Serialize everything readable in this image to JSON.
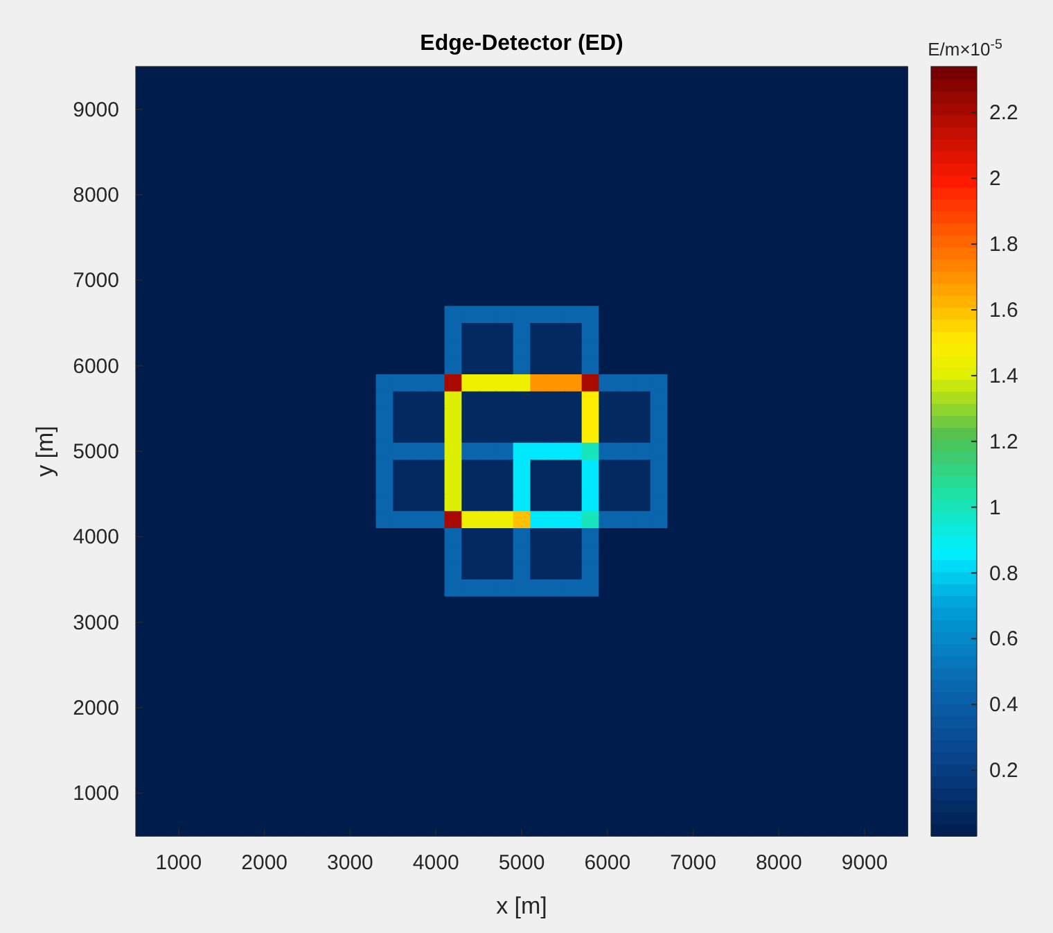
{
  "chart_data": {
    "type": "heatmap",
    "title": "Edge-Detector (ED)",
    "xlabel": "x [m]",
    "ylabel": "y [m]",
    "clabel": "E/m×10$^{-5}$",
    "xlim": [
      500,
      9500
    ],
    "ylim": [
      500,
      9500
    ],
    "xticks": [
      1000,
      2000,
      3000,
      4000,
      5000,
      6000,
      7000,
      8000,
      9000
    ],
    "yticks": [
      1000,
      2000,
      3000,
      4000,
      5000,
      6000,
      7000,
      8000,
      9000
    ],
    "clim": [
      0,
      2.34
    ],
    "cticks": [
      0.2,
      0.4,
      0.6,
      0.8,
      1,
      1.2,
      1.4,
      1.6,
      1.8,
      2,
      2.2
    ],
    "cells": [
      [
        0,
        0,
        0,
        0,
        0,
        0,
        0,
        0,
        0,
        0,
        0,
        0,
        0,
        0,
        0,
        0,
        0,
        0,
        0,
        0,
        0,
        0,
        0,
        0,
        0,
        0,
        0,
        0,
        0,
        0,
        0,
        0,
        0,
        0,
        0,
        0,
        0,
        0,
        0,
        0,
        0,
        0,
        0,
        0,
        0
      ],
      [
        0,
        0,
        0,
        0,
        0,
        0,
        0,
        0,
        0,
        0,
        0,
        0,
        0,
        0,
        0,
        0,
        0,
        0,
        0,
        0,
        0,
        0,
        0,
        0,
        0,
        0,
        0,
        0,
        0,
        0,
        0,
        0,
        0,
        0,
        0,
        0,
        0,
        0,
        0,
        0,
        0,
        0,
        0,
        0,
        0
      ],
      [
        0,
        0,
        0,
        0,
        0,
        0,
        0,
        0,
        0,
        0,
        0,
        0,
        0,
        0,
        0,
        0,
        0,
        0,
        0,
        0,
        0,
        0,
        0,
        0,
        0,
        0,
        0,
        0,
        0,
        0,
        0,
        0,
        0,
        0,
        0,
        0,
        0,
        0,
        0,
        0,
        0,
        0,
        0,
        0,
        0
      ],
      [
        0,
        0,
        0,
        0,
        0,
        0,
        0,
        0,
        0,
        0,
        0,
        0,
        0,
        0,
        0,
        0,
        0,
        0,
        0,
        0,
        0,
        0,
        0,
        0,
        0,
        0,
        0,
        0,
        0,
        0,
        0,
        0,
        0,
        0,
        0,
        0,
        0,
        0,
        0,
        0,
        0,
        0,
        0,
        0,
        0
      ],
      [
        0,
        0,
        0,
        0,
        0,
        0,
        0,
        0,
        0,
        0,
        0,
        0,
        0,
        0,
        0,
        0,
        0,
        0,
        0,
        0,
        0,
        0,
        0,
        0,
        0,
        0,
        0,
        0,
        0,
        0,
        0,
        0,
        0,
        0,
        0,
        0,
        0,
        0,
        0,
        0,
        0,
        0,
        0,
        0,
        0
      ],
      [
        0,
        0,
        0,
        0,
        0,
        0,
        0,
        0,
        0,
        0,
        0,
        0,
        0,
        0,
        0,
        0,
        0,
        0,
        0,
        0,
        0,
        0,
        0,
        0,
        0,
        0,
        0,
        0,
        0,
        0,
        0,
        0,
        0,
        0,
        0,
        0,
        0,
        0,
        0,
        0,
        0,
        0,
        0,
        0,
        0
      ],
      [
        0,
        0,
        0,
        0,
        0,
        0,
        0,
        0,
        0,
        0,
        0,
        0,
        0,
        0,
        0,
        0,
        0,
        0,
        0,
        0,
        0,
        0,
        0,
        0,
        0,
        0,
        0,
        0,
        0,
        0,
        0,
        0,
        0,
        0,
        0,
        0,
        0,
        0,
        0,
        0,
        0,
        0,
        0,
        0,
        0
      ],
      [
        0,
        0,
        0,
        0,
        0,
        0,
        0,
        0,
        0,
        0,
        0,
        0,
        0,
        0,
        0,
        0,
        0,
        0,
        0,
        0,
        0,
        0,
        0,
        0,
        0,
        0,
        0,
        0,
        0,
        0,
        0,
        0,
        0,
        0,
        0,
        0,
        0,
        0,
        0,
        0,
        0,
        0,
        0,
        0,
        0
      ],
      [
        0,
        0,
        0,
        0,
        0,
        0,
        0,
        0,
        0,
        0,
        0,
        0,
        0,
        0,
        0,
        0,
        0,
        0,
        0,
        0,
        0,
        0,
        0,
        0,
        0,
        0,
        0,
        0,
        0,
        0,
        0,
        0,
        0,
        0,
        0,
        0,
        0,
        0,
        0,
        0,
        0,
        0,
        0,
        0,
        0
      ],
      [
        0,
        0,
        0,
        0,
        0,
        0,
        0,
        0,
        0,
        0,
        0,
        0,
        0,
        0,
        0,
        0,
        0,
        0,
        0,
        0,
        0,
        0,
        0,
        0,
        0,
        0,
        0,
        0,
        0,
        0,
        0,
        0,
        0,
        0,
        0,
        0,
        0,
        0,
        0,
        0,
        0,
        0,
        0,
        0,
        0
      ],
      [
        0,
        0,
        0,
        0,
        0,
        0,
        0,
        0,
        0,
        0,
        0,
        0,
        0,
        0,
        0,
        0,
        0,
        0,
        0,
        0,
        0,
        0,
        0,
        0,
        0,
        0,
        0,
        0,
        0,
        0,
        0,
        0,
        0,
        0,
        0,
        0,
        0,
        0,
        0,
        0,
        0,
        0,
        0,
        0,
        0
      ],
      [
        0,
        0,
        0,
        0,
        0,
        0,
        0,
        0,
        0,
        0,
        0,
        0,
        0,
        0,
        0,
        0,
        0,
        0,
        0,
        0,
        0,
        0,
        0,
        0,
        0,
        0,
        0,
        0,
        0,
        0,
        0,
        0,
        0,
        0,
        0,
        0,
        0,
        0,
        0,
        0,
        0,
        0,
        0,
        0,
        0
      ],
      [
        0,
        0,
        0,
        0,
        0,
        0,
        0,
        0,
        0,
        0,
        0,
        0,
        0,
        0,
        0,
        0,
        0,
        0,
        0,
        0,
        0,
        0,
        0,
        0,
        0,
        0,
        0,
        0,
        0,
        0,
        0,
        0,
        0,
        0,
        0,
        0,
        0,
        0,
        0,
        0,
        0,
        0,
        0,
        0,
        0
      ],
      [
        0,
        0,
        0,
        0,
        0,
        0,
        0,
        0,
        0,
        0,
        0,
        0,
        0,
        0,
        0,
        0,
        0,
        0,
        0,
        0,
        0,
        0,
        0,
        0,
        0,
        0,
        0,
        0,
        0,
        0,
        0,
        0,
        0,
        0,
        0,
        0,
        0,
        0,
        0,
        0,
        0,
        0,
        0,
        0,
        0
      ],
      [
        0,
        0,
        0,
        0,
        0,
        0,
        0,
        0,
        0,
        0,
        0,
        0,
        0,
        0,
        0,
        0,
        0,
        0,
        0.45,
        0.45,
        0.45,
        0.45,
        0.45,
        0.45,
        0.45,
        0.45,
        0.45,
        0,
        0,
        0,
        0,
        0,
        0,
        0,
        0,
        0,
        0,
        0,
        0,
        0,
        0,
        0,
        0,
        0,
        0
      ],
      [
        0,
        0,
        0,
        0,
        0,
        0,
        0,
        0,
        0,
        0,
        0,
        0,
        0,
        0,
        0,
        0,
        0,
        0,
        0.45,
        0.08,
        0.08,
        0.08,
        0.45,
        0.08,
        0.08,
        0.08,
        0.45,
        0,
        0,
        0,
        0,
        0,
        0,
        0,
        0,
        0,
        0,
        0,
        0,
        0,
        0,
        0,
        0,
        0,
        0
      ],
      [
        0,
        0,
        0,
        0,
        0,
        0,
        0,
        0,
        0,
        0,
        0,
        0,
        0,
        0,
        0,
        0,
        0,
        0,
        0.45,
        0.08,
        0.08,
        0.08,
        0.45,
        0.08,
        0.08,
        0.08,
        0.45,
        0,
        0,
        0,
        0,
        0,
        0,
        0,
        0,
        0,
        0,
        0,
        0,
        0,
        0,
        0,
        0,
        0,
        0
      ],
      [
        0,
        0,
        0,
        0,
        0,
        0,
        0,
        0,
        0,
        0,
        0,
        0,
        0,
        0,
        0,
        0,
        0,
        0,
        0.45,
        0.08,
        0.08,
        0.08,
        0.45,
        0.08,
        0.08,
        0.08,
        0.45,
        0,
        0,
        0,
        0,
        0,
        0,
        0,
        0,
        0,
        0,
        0,
        0,
        0,
        0,
        0,
        0,
        0,
        0
      ],
      [
        0,
        0,
        0,
        0,
        0,
        0,
        0,
        0,
        0,
        0,
        0,
        0,
        0,
        0,
        0.45,
        0.45,
        0.45,
        0.45,
        2.2,
        1.45,
        1.45,
        1.45,
        1.45,
        1.7,
        1.7,
        1.7,
        2.2,
        0.45,
        0.45,
        0.45,
        0.45,
        0,
        0,
        0,
        0,
        0,
        0,
        0,
        0,
        0,
        0,
        0,
        0,
        0,
        0
      ],
      [
        0,
        0,
        0,
        0,
        0,
        0,
        0,
        0,
        0,
        0,
        0,
        0,
        0,
        0,
        0.45,
        0.08,
        0.08,
        0.08,
        1.4,
        0.08,
        0.08,
        0.08,
        0.08,
        0.08,
        0.08,
        0.08,
        1.5,
        0.08,
        0.08,
        0.08,
        0.45,
        0,
        0,
        0,
        0,
        0,
        0,
        0,
        0,
        0,
        0,
        0,
        0,
        0,
        0
      ],
      [
        0,
        0,
        0,
        0,
        0,
        0,
        0,
        0,
        0,
        0,
        0,
        0,
        0,
        0,
        0.45,
        0.08,
        0.08,
        0.08,
        1.4,
        0.08,
        0.08,
        0.08,
        0.08,
        0.08,
        0.08,
        0.08,
        1.5,
        0.08,
        0.08,
        0.08,
        0.45,
        0,
        0,
        0,
        0,
        0,
        0,
        0,
        0,
        0,
        0,
        0,
        0,
        0,
        0
      ],
      [
        0,
        0,
        0,
        0,
        0,
        0,
        0,
        0,
        0,
        0,
        0,
        0,
        0,
        0,
        0.45,
        0.08,
        0.08,
        0.08,
        1.4,
        0.08,
        0.08,
        0.08,
        0.08,
        0.08,
        0.08,
        0.08,
        1.5,
        0.08,
        0.08,
        0.08,
        0.45,
        0,
        0,
        0,
        0,
        0,
        0,
        0,
        0,
        0,
        0,
        0,
        0,
        0,
        0
      ],
      [
        0,
        0,
        0,
        0,
        0,
        0,
        0,
        0,
        0,
        0,
        0,
        0,
        0,
        0,
        0.45,
        0.45,
        0.45,
        0.45,
        1.4,
        0.45,
        0.45,
        0.45,
        0.85,
        0.85,
        0.85,
        0.85,
        1,
        0.45,
        0.45,
        0.45,
        0.45,
        0,
        0,
        0,
        0,
        0,
        0,
        0,
        0,
        0,
        0,
        0,
        0,
        0,
        0
      ],
      [
        0,
        0,
        0,
        0,
        0,
        0,
        0,
        0,
        0,
        0,
        0,
        0,
        0,
        0,
        0.45,
        0.08,
        0.08,
        0.08,
        1.4,
        0.08,
        0.08,
        0.08,
        0.85,
        0.08,
        0.08,
        0.08,
        0.85,
        0.08,
        0.08,
        0.08,
        0.45,
        0,
        0,
        0,
        0,
        0,
        0,
        0,
        0,
        0,
        0,
        0,
        0,
        0,
        0
      ],
      [
        0,
        0,
        0,
        0,
        0,
        0,
        0,
        0,
        0,
        0,
        0,
        0,
        0,
        0,
        0.45,
        0.08,
        0.08,
        0.08,
        1.4,
        0.08,
        0.08,
        0.08,
        0.85,
        0.08,
        0.08,
        0.08,
        0.85,
        0.08,
        0.08,
        0.08,
        0.45,
        0,
        0,
        0,
        0,
        0,
        0,
        0,
        0,
        0,
        0,
        0,
        0,
        0,
        0
      ],
      [
        0,
        0,
        0,
        0,
        0,
        0,
        0,
        0,
        0,
        0,
        0,
        0,
        0,
        0,
        0.45,
        0.08,
        0.08,
        0.08,
        1.4,
        0.08,
        0.08,
        0.08,
        0.85,
        0.08,
        0.08,
        0.08,
        0.85,
        0.08,
        0.08,
        0.08,
        0.45,
        0,
        0,
        0,
        0,
        0,
        0,
        0,
        0,
        0,
        0,
        0,
        0,
        0,
        0
      ],
      [
        0,
        0,
        0,
        0,
        0,
        0,
        0,
        0,
        0,
        0,
        0,
        0,
        0,
        0,
        0.45,
        0.45,
        0.45,
        0.45,
        2.2,
        1.45,
        1.45,
        1.45,
        1.6,
        0.85,
        0.85,
        0.85,
        1,
        0.45,
        0.45,
        0.45,
        0.45,
        0,
        0,
        0,
        0,
        0,
        0,
        0,
        0,
        0,
        0,
        0,
        0,
        0,
        0
      ],
      [
        0,
        0,
        0,
        0,
        0,
        0,
        0,
        0,
        0,
        0,
        0,
        0,
        0,
        0,
        0,
        0,
        0,
        0,
        0.45,
        0.08,
        0.08,
        0.08,
        0.45,
        0.08,
        0.08,
        0.08,
        0.45,
        0,
        0,
        0,
        0,
        0,
        0,
        0,
        0,
        0,
        0,
        0,
        0,
        0,
        0,
        0,
        0,
        0,
        0
      ],
      [
        0,
        0,
        0,
        0,
        0,
        0,
        0,
        0,
        0,
        0,
        0,
        0,
        0,
        0,
        0,
        0,
        0,
        0,
        0.45,
        0.08,
        0.08,
        0.08,
        0.45,
        0.08,
        0.08,
        0.08,
        0.45,
        0,
        0,
        0,
        0,
        0,
        0,
        0,
        0,
        0,
        0,
        0,
        0,
        0,
        0,
        0,
        0,
        0,
        0
      ],
      [
        0,
        0,
        0,
        0,
        0,
        0,
        0,
        0,
        0,
        0,
        0,
        0,
        0,
        0,
        0,
        0,
        0,
        0,
        0.45,
        0.08,
        0.08,
        0.08,
        0.45,
        0.08,
        0.08,
        0.08,
        0.45,
        0,
        0,
        0,
        0,
        0,
        0,
        0,
        0,
        0,
        0,
        0,
        0,
        0,
        0,
        0,
        0,
        0,
        0
      ],
      [
        0,
        0,
        0,
        0,
        0,
        0,
        0,
        0,
        0,
        0,
        0,
        0,
        0,
        0,
        0,
        0,
        0,
        0,
        0.45,
        0.45,
        0.45,
        0.45,
        0.45,
        0.45,
        0.45,
        0.45,
        0.45,
        0,
        0,
        0,
        0,
        0,
        0,
        0,
        0,
        0,
        0,
        0,
        0,
        0,
        0,
        0,
        0,
        0,
        0
      ],
      [
        0,
        0,
        0,
        0,
        0,
        0,
        0,
        0,
        0,
        0,
        0,
        0,
        0,
        0,
        0,
        0,
        0,
        0,
        0,
        0,
        0,
        0,
        0,
        0,
        0,
        0,
        0,
        0,
        0,
        0,
        0,
        0,
        0,
        0,
        0,
        0,
        0,
        0,
        0,
        0,
        0,
        0,
        0,
        0,
        0
      ],
      [
        0,
        0,
        0,
        0,
        0,
        0,
        0,
        0,
        0,
        0,
        0,
        0,
        0,
        0,
        0,
        0,
        0,
        0,
        0,
        0,
        0,
        0,
        0,
        0,
        0,
        0,
        0,
        0,
        0,
        0,
        0,
        0,
        0,
        0,
        0,
        0,
        0,
        0,
        0,
        0,
        0,
        0,
        0,
        0,
        0
      ],
      [
        0,
        0,
        0,
        0,
        0,
        0,
        0,
        0,
        0,
        0,
        0,
        0,
        0,
        0,
        0,
        0,
        0,
        0,
        0,
        0,
        0,
        0,
        0,
        0,
        0,
        0,
        0,
        0,
        0,
        0,
        0,
        0,
        0,
        0,
        0,
        0,
        0,
        0,
        0,
        0,
        0,
        0,
        0,
        0,
        0
      ],
      [
        0,
        0,
        0,
        0,
        0,
        0,
        0,
        0,
        0,
        0,
        0,
        0,
        0,
        0,
        0,
        0,
        0,
        0,
        0,
        0,
        0,
        0,
        0,
        0,
        0,
        0,
        0,
        0,
        0,
        0,
        0,
        0,
        0,
        0,
        0,
        0,
        0,
        0,
        0,
        0,
        0,
        0,
        0,
        0,
        0
      ],
      [
        0,
        0,
        0,
        0,
        0,
        0,
        0,
        0,
        0,
        0,
        0,
        0,
        0,
        0,
        0,
        0,
        0,
        0,
        0,
        0,
        0,
        0,
        0,
        0,
        0,
        0,
        0,
        0,
        0,
        0,
        0,
        0,
        0,
        0,
        0,
        0,
        0,
        0,
        0,
        0,
        0,
        0,
        0,
        0,
        0
      ],
      [
        0,
        0,
        0,
        0,
        0,
        0,
        0,
        0,
        0,
        0,
        0,
        0,
        0,
        0,
        0,
        0,
        0,
        0,
        0,
        0,
        0,
        0,
        0,
        0,
        0,
        0,
        0,
        0,
        0,
        0,
        0,
        0,
        0,
        0,
        0,
        0,
        0,
        0,
        0,
        0,
        0,
        0,
        0,
        0,
        0
      ],
      [
        0,
        0,
        0,
        0,
        0,
        0,
        0,
        0,
        0,
        0,
        0,
        0,
        0,
        0,
        0,
        0,
        0,
        0,
        0,
        0,
        0,
        0,
        0,
        0,
        0,
        0,
        0,
        0,
        0,
        0,
        0,
        0,
        0,
        0,
        0,
        0,
        0,
        0,
        0,
        0,
        0,
        0,
        0,
        0,
        0
      ],
      [
        0,
        0,
        0,
        0,
        0,
        0,
        0,
        0,
        0,
        0,
        0,
        0,
        0,
        0,
        0,
        0,
        0,
        0,
        0,
        0,
        0,
        0,
        0,
        0,
        0,
        0,
        0,
        0,
        0,
        0,
        0,
        0,
        0,
        0,
        0,
        0,
        0,
        0,
        0,
        0,
        0,
        0,
        0,
        0,
        0
      ],
      [
        0,
        0,
        0,
        0,
        0,
        0,
        0,
        0,
        0,
        0,
        0,
        0,
        0,
        0,
        0,
        0,
        0,
        0,
        0,
        0,
        0,
        0,
        0,
        0,
        0,
        0,
        0,
        0,
        0,
        0,
        0,
        0,
        0,
        0,
        0,
        0,
        0,
        0,
        0,
        0,
        0,
        0,
        0,
        0,
        0
      ],
      [
        0,
        0,
        0,
        0,
        0,
        0,
        0,
        0,
        0,
        0,
        0,
        0,
        0,
        0,
        0,
        0,
        0,
        0,
        0,
        0,
        0,
        0,
        0,
        0,
        0,
        0,
        0,
        0,
        0,
        0,
        0,
        0,
        0,
        0,
        0,
        0,
        0,
        0,
        0,
        0,
        0,
        0,
        0,
        0,
        0
      ],
      [
        0,
        0,
        0,
        0,
        0,
        0,
        0,
        0,
        0,
        0,
        0,
        0,
        0,
        0,
        0,
        0,
        0,
        0,
        0,
        0,
        0,
        0,
        0,
        0,
        0,
        0,
        0,
        0,
        0,
        0,
        0,
        0,
        0,
        0,
        0,
        0,
        0,
        0,
        0,
        0,
        0,
        0,
        0,
        0,
        0
      ],
      [
        0,
        0,
        0,
        0,
        0,
        0,
        0,
        0,
        0,
        0,
        0,
        0,
        0,
        0,
        0,
        0,
        0,
        0,
        0,
        0,
        0,
        0,
        0,
        0,
        0,
        0,
        0,
        0,
        0,
        0,
        0,
        0,
        0,
        0,
        0,
        0,
        0,
        0,
        0,
        0,
        0,
        0,
        0,
        0,
        0
      ],
      [
        0,
        0,
        0,
        0,
        0,
        0,
        0,
        0,
        0,
        0,
        0,
        0,
        0,
        0,
        0,
        0,
        0,
        0,
        0,
        0,
        0,
        0,
        0,
        0,
        0,
        0,
        0,
        0,
        0,
        0,
        0,
        0,
        0,
        0,
        0,
        0,
        0,
        0,
        0,
        0,
        0,
        0,
        0,
        0,
        0
      ],
      [
        0,
        0,
        0,
        0,
        0,
        0,
        0,
        0,
        0,
        0,
        0,
        0,
        0,
        0,
        0,
        0,
        0,
        0,
        0,
        0,
        0,
        0,
        0,
        0,
        0,
        0,
        0,
        0,
        0,
        0,
        0,
        0,
        0,
        0,
        0,
        0,
        0,
        0,
        0,
        0,
        0,
        0,
        0,
        0,
        0
      ]
    ]
  }
}
